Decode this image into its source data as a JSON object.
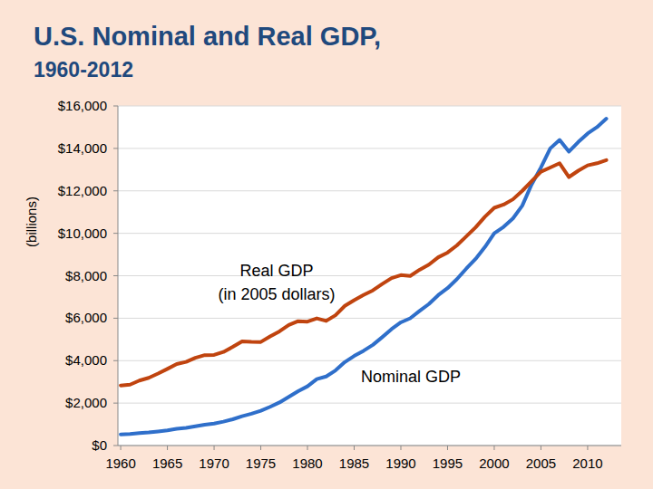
{
  "chart_data": {
    "type": "line",
    "title": "U.S. Nominal and Real GDP,",
    "subtitle": "1960-2012",
    "y_label": "(billions)",
    "annotations": [
      "(in 2005 dollars)"
    ],
    "x": [
      1960,
      1961,
      1962,
      1963,
      1964,
      1965,
      1966,
      1967,
      1968,
      1969,
      1970,
      1971,
      1972,
      1973,
      1974,
      1975,
      1976,
      1977,
      1978,
      1979,
      1980,
      1981,
      1982,
      1983,
      1984,
      1985,
      1986,
      1987,
      1988,
      1989,
      1990,
      1991,
      1992,
      1993,
      1994,
      1995,
      1996,
      1997,
      1998,
      1999,
      2000,
      2001,
      2002,
      2003,
      2004,
      2005,
      2006,
      2007,
      2008,
      2009,
      2010,
      2011,
      2012
    ],
    "series": [
      {
        "name": "Nominal GDP",
        "color": "#2f6fca",
        "values": [
          526,
          545,
          586,
          618,
          664,
          719,
          788,
          833,
          910,
          985,
          1038,
          1127,
          1238,
          1383,
          1500,
          1638,
          1825,
          2030,
          2294,
          2563,
          2789,
          3128,
          3255,
          3537,
          3933,
          4220,
          4463,
          4740,
          5104,
          5484,
          5803,
          5996,
          6338,
          6667,
          7085,
          7415,
          7839,
          8332,
          8794,
          9354,
          10000,
          10300,
          10700,
          11300,
          12300,
          13100,
          14000,
          14400,
          13850,
          14300,
          14700,
          15000,
          15400
        ]
      },
      {
        "name": "Real GDP",
        "color": "#c0440f",
        "values": [
          2830,
          2870,
          3060,
          3190,
          3390,
          3610,
          3840,
          3940,
          4130,
          4260,
          4270,
          4410,
          4650,
          4910,
          4890,
          4880,
          5140,
          5380,
          5680,
          5860,
          5840,
          5990,
          5870,
          6140,
          6580,
          6850,
          7090,
          7310,
          7610,
          7890,
          8030,
          7990,
          8280,
          8520,
          8870,
          9090,
          9430,
          9850,
          10280,
          10780,
          11200,
          11350,
          11600,
          12000,
          12450,
          12900,
          13100,
          13300,
          12650,
          12950,
          13200,
          13300,
          13450
        ]
      }
    ],
    "xlim": [
      1959.7,
      2013.6
    ],
    "xticks": [
      1960,
      1965,
      1970,
      1975,
      1980,
      1985,
      1990,
      1995,
      2000,
      2005,
      2010
    ],
    "ylim": [
      0,
      16000
    ],
    "yticks": [
      {
        "value": 0,
        "label": "$0"
      },
      {
        "value": 2000,
        "label": "$2,000"
      },
      {
        "value": 4000,
        "label": "$4,000"
      },
      {
        "value": 6000,
        "label": "$6,000"
      },
      {
        "value": 8000,
        "label": "$8,000"
      },
      {
        "value": 10000,
        "label": "$10,000"
      },
      {
        "value": 12000,
        "label": "$12,000"
      },
      {
        "value": 14000,
        "label": "$14,000"
      },
      {
        "value": 16000,
        "label": "$16,000"
      }
    ],
    "grid": true
  }
}
